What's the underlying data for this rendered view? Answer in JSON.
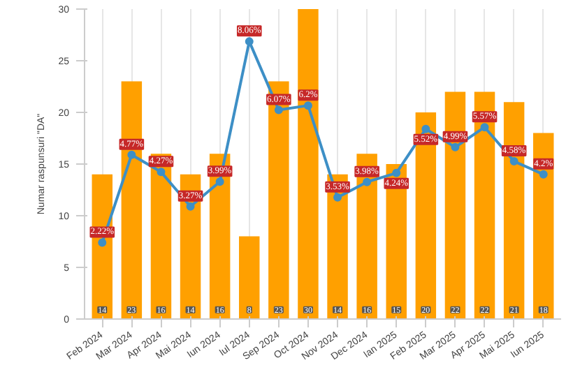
{
  "chart_data": {
    "type": "bar",
    "ylabel": "Numar raspunsuri \"DA\"",
    "categories": [
      "Feb 2024",
      "Mar 2024",
      "Apr 2024",
      "Mai 2024",
      "Iun 2024",
      "Iul 2024",
      "Sep 2024",
      "Oct 2024",
      "Nov 2024",
      "Dec 2024",
      "Ian 2025",
      "Feb 2025",
      "Mar 2025",
      "Apr 2025",
      "Mai 2025",
      "Iun 2025"
    ],
    "series": [
      {
        "color": "#ffa000",
        "values": [
          14,
          23,
          16,
          14,
          16,
          8,
          23,
          30,
          14,
          16,
          15,
          20,
          22,
          22,
          21,
          18
        ]
      },
      {
        "type": "line",
        "axis": "y2",
        "color": "#3d8fc6",
        "values": [
          2.22,
          4.77,
          4.27,
          3.27,
          3.99,
          8.06,
          6.07,
          6.2,
          3.53,
          3.98,
          4.24,
          5.52,
          4.99,
          5.57,
          4.58,
          4.2
        ],
        "value_labels": [
          "2.22%",
          "4.77%",
          "4.27%",
          "3.27%",
          "3.99%",
          "8.06%",
          "6.07%",
          "6.2%",
          "3.53%",
          "3.98%",
          "4.24%",
          "5.52%",
          "4.99%",
          "5.57%",
          "4.58%",
          "4.2%"
        ]
      }
    ],
    "ylim": [
      0,
      30
    ],
    "y2lim": [
      0,
      9
    ],
    "yticks": [
      0,
      5,
      10,
      15,
      20,
      25,
      30
    ],
    "grid": "x",
    "data_labels": true,
    "marker": "circle"
  }
}
